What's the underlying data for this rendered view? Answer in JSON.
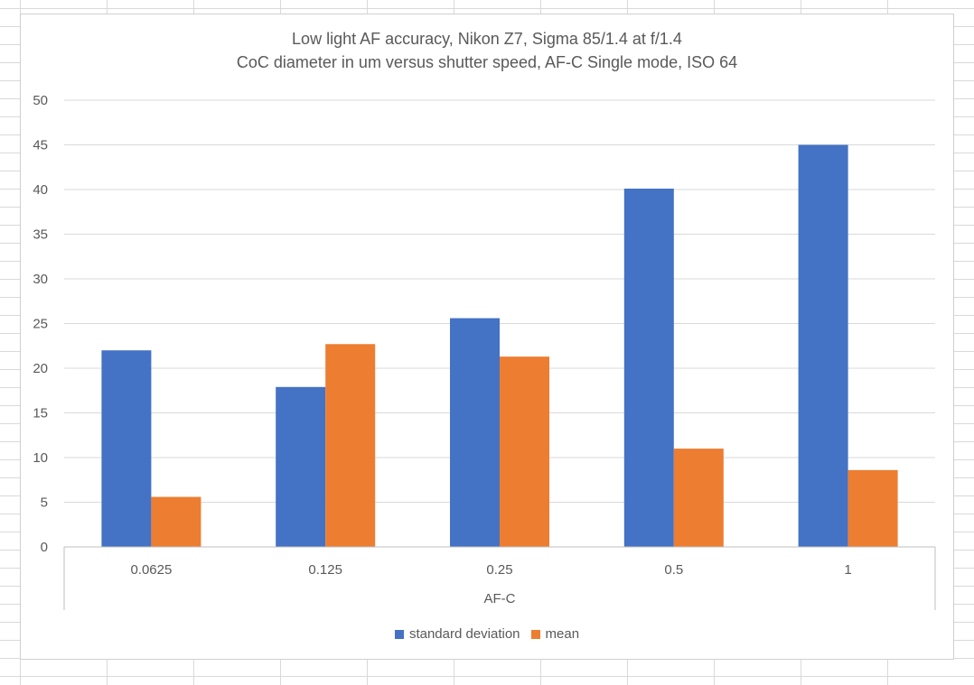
{
  "chart_data": {
    "type": "bar",
    "title": "Low light AF accuracy, Nikon Z7, Sigma 85/1.4 at f/1.4",
    "subtitle": "CoC diameter in um versus shutter speed, AF-C Single mode, ISO 64",
    "xlabel": "AF-C",
    "ylabel": "",
    "categories": [
      "0.0625",
      "0.125",
      "0.25",
      "0.5",
      "1"
    ],
    "series": [
      {
        "name": "standard deviation",
        "color": "#4472C4",
        "values": [
          22.0,
          17.9,
          25.6,
          40.1,
          45.0
        ]
      },
      {
        "name": "mean",
        "color": "#ED7D31",
        "values": [
          5.6,
          22.7,
          21.3,
          11.0,
          8.6
        ]
      }
    ],
    "ylim": [
      0,
      50
    ],
    "yticks": [
      "0",
      "5",
      "10",
      "15",
      "20",
      "25",
      "30",
      "35",
      "40",
      "45",
      "50"
    ],
    "grid": true,
    "legend_position": "bottom"
  }
}
